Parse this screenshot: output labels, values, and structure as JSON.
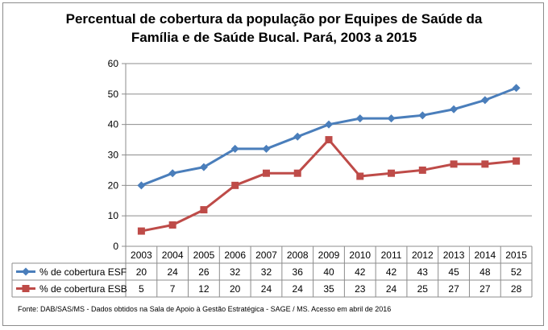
{
  "chart_data": {
    "type": "line",
    "title_line1": "Percentual de cobertura da população por Equipes de Saúde da",
    "title_line2": "Família e de Saúde Bucal. Pará, 2003 a 2015",
    "categories": [
      "2003",
      "2004",
      "2005",
      "2006",
      "2007",
      "2008",
      "2009",
      "2010",
      "2011",
      "2012",
      "2013",
      "2014",
      "2015"
    ],
    "ylim": [
      0,
      60
    ],
    "yticks": [
      "0",
      "10",
      "20",
      "30",
      "40",
      "50",
      "60"
    ],
    "gridlines": true,
    "legend_position": "data-table",
    "series": [
      {
        "name": "% de cobertura ESF",
        "color": "#4a7ebb",
        "marker": "diamond",
        "values": [
          20,
          24,
          26,
          32,
          32,
          36,
          40,
          42,
          42,
          43,
          45,
          48,
          52
        ]
      },
      {
        "name": "% de cobertura ESB",
        "color": "#be4b48",
        "marker": "square",
        "values": [
          5,
          7,
          12,
          20,
          24,
          24,
          35,
          23,
          24,
          25,
          27,
          27,
          28
        ]
      }
    ]
  },
  "source": "Fonte:  DAB/SAS/MS - Dados obtidos na Sala de Apoio à Gestão Estratégica - SAGE / MS. Acesso em abril  de 2016"
}
